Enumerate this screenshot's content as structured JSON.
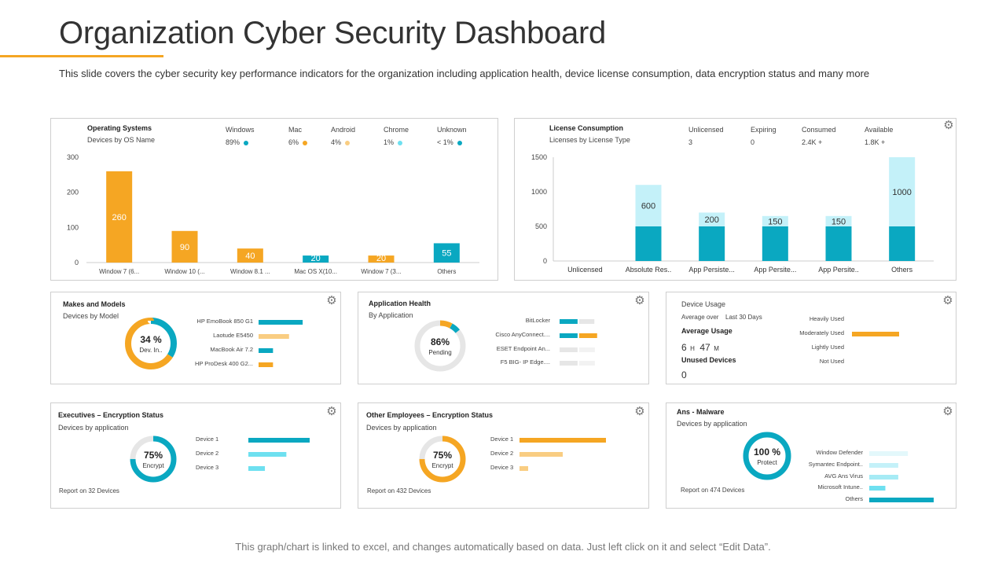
{
  "title": "Organization Cyber Security Dashboard",
  "subtitle": "This slide covers the cyber security key performance indicators for the organization including application health, device license consumption, data encryption status and many more",
  "footer": "This graph/chart is linked to excel,  and changes automatically based on data. Just left click on it and select “Edit Data”.",
  "colors": {
    "orange": "#F5A623",
    "teal": "#0AA8C1",
    "lightTeal": "#C4F1F9",
    "cyan": "#6EE0F0",
    "lightOrange": "#F9CD82",
    "grey": "#E6E6E6"
  },
  "os": {
    "title": "Operating Systems",
    "subtitle": "Devices by OS Name",
    "legend": [
      {
        "name": "Windows",
        "value": "89%",
        "color": "#0AA8C1"
      },
      {
        "name": "Mac",
        "value": "6%",
        "color": "#F5A623"
      },
      {
        "name": "Android",
        "value": "4%",
        "color": "#F9CD82"
      },
      {
        "name": "Chrome",
        "value": "1%",
        "color": "#6EE0F0"
      },
      {
        "name": "Unknown",
        "value": "< 1%",
        "color": "#0AA8C1"
      }
    ]
  },
  "license": {
    "title": "License Consumption",
    "subtitle": "Licenses by License Type",
    "stats": [
      {
        "name": "Unlicensed",
        "value": "3"
      },
      {
        "name": "Expiring",
        "value": "0"
      },
      {
        "name": "Consumed",
        "value": "2.4K +"
      },
      {
        "name": "Available",
        "value": "1.8K +"
      }
    ]
  },
  "makes": {
    "title": "Makes  and Models",
    "subtitle": "Devices by Model",
    "center_value": "34 %",
    "center_label": "Dev. In..",
    "items": [
      {
        "label": "HP EmoBook  850  G1",
        "value": 0.55,
        "color": "#0AA8C1"
      },
      {
        "label": "Laotude  E5450",
        "value": 0.38,
        "color": "#F9CD82"
      },
      {
        "label": "MacBook  Air 7.2",
        "value": 0.18,
        "color": "#0AA8C1"
      },
      {
        "label": "HP ProDesk  400  G2...",
        "value": 0.18,
        "color": "#F5A623"
      }
    ]
  },
  "apphealth": {
    "title": "Application Health",
    "subtitle": "By Application",
    "center_value": "86%",
    "center_label": "Pending",
    "items": [
      {
        "label": "BitLocker",
        "a": 0.26,
        "b": 0.22,
        "ca": "#0AA8C1",
        "cb": "#E6E6E6"
      },
      {
        "label": "Cisco AnyConnect....",
        "a": 0.26,
        "b": 0.26,
        "ca": "#0AA8C1",
        "cb": "#F5A623"
      },
      {
        "label": "ESET  Endpoint  An...",
        "a": 0.26,
        "b": 0,
        "ca": "#E6E6E6",
        "cb": "#E6E6E6"
      },
      {
        "label": "F5 BIG- IP Edge....",
        "a": 0.26,
        "b": 0,
        "ca": "#E6E6E6",
        "cb": "#E6E6E6"
      }
    ]
  },
  "usage": {
    "title": "Device Usage",
    "period_label": "Average  over",
    "period_value": "Last  30 Days",
    "avg_title": "Average   Usage",
    "avg_h": "6",
    "avg_h_unit": "H",
    "avg_m": "47",
    "avg_m_unit": "M",
    "unused_title": "Unused Devices",
    "unused_value": "0",
    "items": [
      {
        "label": "Heavily Used",
        "value": 0
      },
      {
        "label": "Moderately  Used",
        "value": 1
      },
      {
        "label": "Lightly Used",
        "value": 0
      },
      {
        "label": "Not Used",
        "value": 0
      }
    ]
  },
  "exec": {
    "title": "Executives – Encryption Status",
    "subtitle": "Devices by application",
    "center_value": "75%",
    "center_label": "Encrypt",
    "report": "Report on 32  Devices",
    "items": [
      {
        "label": "Device 1",
        "value": 1.0,
        "color": "#0AA8C1"
      },
      {
        "label": "Device 2",
        "value": 0.62,
        "color": "#6EE0F0"
      },
      {
        "label": "Device 3",
        "value": 0.27,
        "color": "#6EE0F0"
      }
    ]
  },
  "emp": {
    "title": "Other Employees – Encryption Status",
    "subtitle": "Devices by application",
    "center_value": "75%",
    "center_label": "Encrypt",
    "report": "Report on 432  Devices",
    "items": [
      {
        "label": "Device 1",
        "value": 1.0,
        "color": "#F5A623"
      },
      {
        "label": "Device 2",
        "value": 0.5,
        "color": "#F9CD82"
      },
      {
        "label": "Device 3",
        "value": 0.1,
        "color": "#F9CD82"
      }
    ]
  },
  "malware": {
    "title": "Ans  - Malware",
    "subtitle": "Devices by application",
    "center_value": "100 %",
    "center_label": "Protect",
    "report": "Report on 474  Devices",
    "items": [
      {
        "label": "Window  Defender",
        "value": 0.6,
        "color": "#E3F8FB"
      },
      {
        "label": "Symantec  Endpoint..",
        "value": 0.45,
        "color": "#C4F1F9"
      },
      {
        "label": "AVG Ans Virus",
        "value": 0.45,
        "color": "#A6EBF5"
      },
      {
        "label": "Microsoft Intune..",
        "value": 0.25,
        "color": "#6EE0F0"
      },
      {
        "label": "Others",
        "value": 1.0,
        "color": "#0AA8C1"
      }
    ]
  },
  "chart_data": [
    {
      "type": "bar",
      "title": "Operating Systems",
      "subtitle": "Devices by OS Name",
      "categories": [
        "Window 7 (6...",
        "Window 10 (...",
        "Window 8.1 ...",
        "Mac OS X(10...",
        "Window 7 (3...",
        "Others"
      ],
      "values": [
        260,
        90,
        40,
        20,
        20,
        55
      ],
      "colors": [
        "#F5A623",
        "#F5A623",
        "#F5A623",
        "#0AA8C1",
        "#F5A623",
        "#0AA8C1"
      ],
      "yticks": [
        0,
        100,
        200,
        300
      ],
      "ylim": [
        0,
        300
      ],
      "xlabel": "",
      "ylabel": ""
    },
    {
      "type": "bar",
      "title": "License Consumption",
      "subtitle": "Licenses by License Type",
      "categories": [
        "Unlicensed",
        "Absolute Res..",
        "App Persiste...",
        "App Persite...",
        "App Persite..",
        "Others"
      ],
      "series": [
        {
          "name": "base",
          "values": [
            0,
            500,
            500,
            500,
            500,
            500
          ],
          "color": "#0AA8C1"
        },
        {
          "name": "top",
          "values": [
            0,
            600,
            200,
            150,
            150,
            1000
          ],
          "color": "#C4F1F9"
        }
      ],
      "labels": [
        "",
        "600",
        "200",
        "150",
        "150",
        "1000"
      ],
      "yticks": [
        0,
        500,
        1000,
        1500
      ],
      "ylim": [
        0,
        1500
      ],
      "stacked": true
    },
    {
      "type": "pie",
      "title": "Makes and Models",
      "values": [
        34,
        66
      ],
      "colors": [
        "#0AA8C1",
        "#F5A623"
      ]
    },
    {
      "type": "pie",
      "title": "Application Health",
      "values": [
        86,
        8,
        6
      ],
      "colors": [
        "#E6E6E6",
        "#F5A623",
        "#0AA8C1"
      ]
    },
    {
      "type": "pie",
      "title": "Executives – Encryption Status",
      "values": [
        75,
        25
      ],
      "colors": [
        "#0AA8C1",
        "#E6E6E6"
      ]
    },
    {
      "type": "pie",
      "title": "Other Employees – Encryption Status",
      "values": [
        75,
        25
      ],
      "colors": [
        "#F5A623",
        "#E6E6E6"
      ]
    },
    {
      "type": "pie",
      "title": "Ans - Malware",
      "values": [
        100
      ],
      "colors": [
        "#0AA8C1"
      ]
    }
  ]
}
